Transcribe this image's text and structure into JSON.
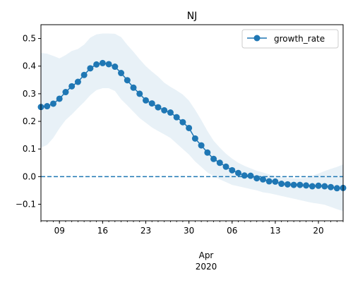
{
  "chart_data": {
    "type": "line",
    "title": "NJ",
    "xlabel": "",
    "ylabel": "",
    "x_start": "2020-03-06",
    "x_end": "2020-04-24",
    "x_ticks_major": [
      {
        "label": "09",
        "date": "2020-03-09"
      },
      {
        "label": "16",
        "date": "2020-03-16"
      },
      {
        "label": "23",
        "date": "2020-03-23"
      },
      {
        "label": "30",
        "date": "2020-03-30"
      },
      {
        "label": "06",
        "date": "2020-04-06"
      },
      {
        "label": "13",
        "date": "2020-04-13"
      },
      {
        "label": "20",
        "date": "2020-04-20"
      }
    ],
    "x_month_label": "Apr",
    "x_year_label": "2020",
    "y_ticks": [
      {
        "label": "−0.1",
        "value": -0.1
      },
      {
        "label": "0.0",
        "value": 0.0
      },
      {
        "label": "0.1",
        "value": 0.1
      },
      {
        "label": "0.2",
        "value": 0.2
      },
      {
        "label": "0.3",
        "value": 0.3
      },
      {
        "label": "0.4",
        "value": 0.4
      },
      {
        "label": "0.5",
        "value": 0.5
      }
    ],
    "ylim": [
      -0.16,
      0.55
    ],
    "reference_line": {
      "value": 0.0,
      "style": "dashed",
      "color": "#1f77b4"
    },
    "legend": {
      "placement": "top-right",
      "entries": [
        "growth_rate"
      ]
    },
    "series": [
      {
        "name": "growth_rate",
        "color": "#1f77b4",
        "x": [
          "2020-03-06",
          "2020-03-07",
          "2020-03-08",
          "2020-03-09",
          "2020-03-10",
          "2020-03-11",
          "2020-03-12",
          "2020-03-13",
          "2020-03-14",
          "2020-03-15",
          "2020-03-16",
          "2020-03-17",
          "2020-03-18",
          "2020-03-19",
          "2020-03-20",
          "2020-03-21",
          "2020-03-22",
          "2020-03-23",
          "2020-03-24",
          "2020-03-25",
          "2020-03-26",
          "2020-03-27",
          "2020-03-28",
          "2020-03-29",
          "2020-03-30",
          "2020-03-31",
          "2020-04-01",
          "2020-04-02",
          "2020-04-03",
          "2020-04-04",
          "2020-04-05",
          "2020-04-06",
          "2020-04-07",
          "2020-04-08",
          "2020-04-09",
          "2020-04-10",
          "2020-04-11",
          "2020-04-12",
          "2020-04-13",
          "2020-04-14",
          "2020-04-15",
          "2020-04-16",
          "2020-04-17",
          "2020-04-18",
          "2020-04-19",
          "2020-04-20",
          "2020-04-21",
          "2020-04-22",
          "2020-04-23",
          "2020-04-24"
        ],
        "values": [
          0.252,
          0.255,
          0.264,
          0.282,
          0.306,
          0.327,
          0.343,
          0.368,
          0.392,
          0.406,
          0.411,
          0.407,
          0.398,
          0.375,
          0.349,
          0.322,
          0.3,
          0.276,
          0.265,
          0.251,
          0.24,
          0.232,
          0.215,
          0.197,
          0.176,
          0.138,
          0.113,
          0.087,
          0.064,
          0.05,
          0.036,
          0.023,
          0.013,
          0.004,
          0.003,
          -0.006,
          -0.01,
          -0.017,
          -0.018,
          -0.026,
          -0.028,
          -0.03,
          -0.03,
          -0.032,
          -0.035,
          -0.033,
          -0.035,
          -0.038,
          -0.042,
          -0.041
        ],
        "band_upper": [
          0.448,
          0.445,
          0.437,
          0.428,
          0.44,
          0.455,
          0.462,
          0.478,
          0.503,
          0.515,
          0.518,
          0.518,
          0.517,
          0.505,
          0.477,
          0.452,
          0.425,
          0.4,
          0.38,
          0.362,
          0.34,
          0.325,
          0.312,
          0.297,
          0.275,
          0.242,
          0.205,
          0.165,
          0.13,
          0.105,
          0.083,
          0.065,
          0.05,
          0.039,
          0.03,
          0.021,
          0.015,
          0.008,
          0.003,
          -0.001,
          -0.005,
          -0.006,
          -0.006,
          -0.004,
          0.004,
          0.011,
          0.02,
          0.028,
          0.035,
          0.044
        ],
        "band_lower": [
          0.105,
          0.115,
          0.14,
          0.175,
          0.205,
          0.225,
          0.248,
          0.27,
          0.295,
          0.313,
          0.32,
          0.32,
          0.31,
          0.28,
          0.258,
          0.235,
          0.212,
          0.195,
          0.178,
          0.165,
          0.153,
          0.14,
          0.12,
          0.1,
          0.08,
          0.055,
          0.035,
          0.015,
          0.002,
          -0.01,
          -0.02,
          -0.03,
          -0.035,
          -0.04,
          -0.045,
          -0.05,
          -0.057,
          -0.06,
          -0.065,
          -0.07,
          -0.075,
          -0.08,
          -0.085,
          -0.09,
          -0.095,
          -0.098,
          -0.102,
          -0.11,
          -0.118,
          -0.125
        ]
      }
    ]
  }
}
